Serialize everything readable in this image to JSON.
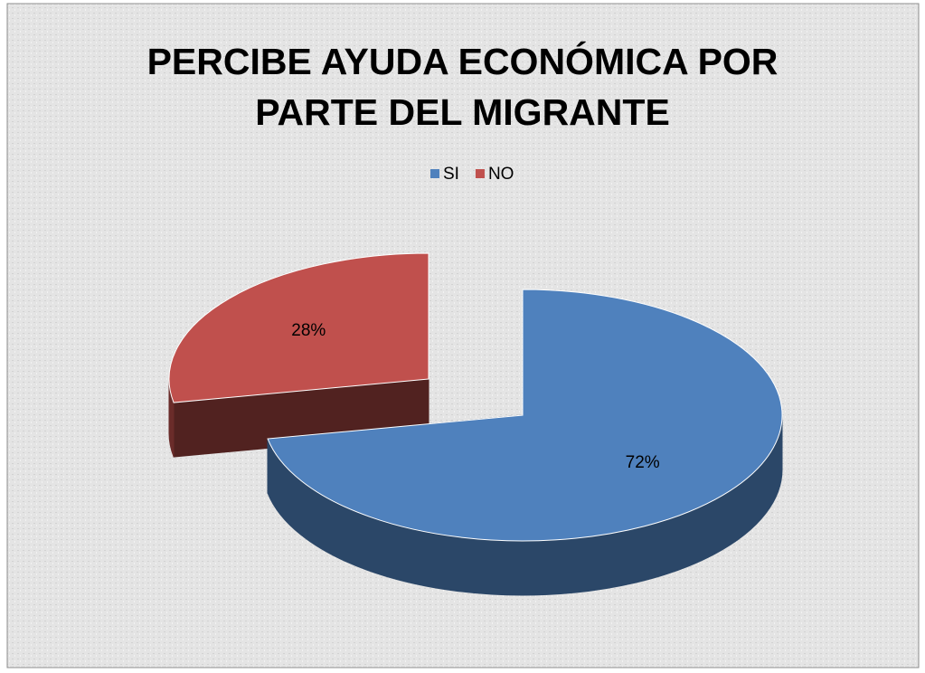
{
  "chart_data": {
    "type": "pie3d",
    "title": "PERCIBE AYUDA ECONÓMICA POR PARTE DEL MIGRANTE",
    "categories": [
      "SI",
      "NO"
    ],
    "values": [
      72,
      28
    ],
    "value_labels": [
      "72%",
      "28%"
    ],
    "colors": [
      "#4f81bd",
      "#c0504d"
    ],
    "legend": "top"
  }
}
